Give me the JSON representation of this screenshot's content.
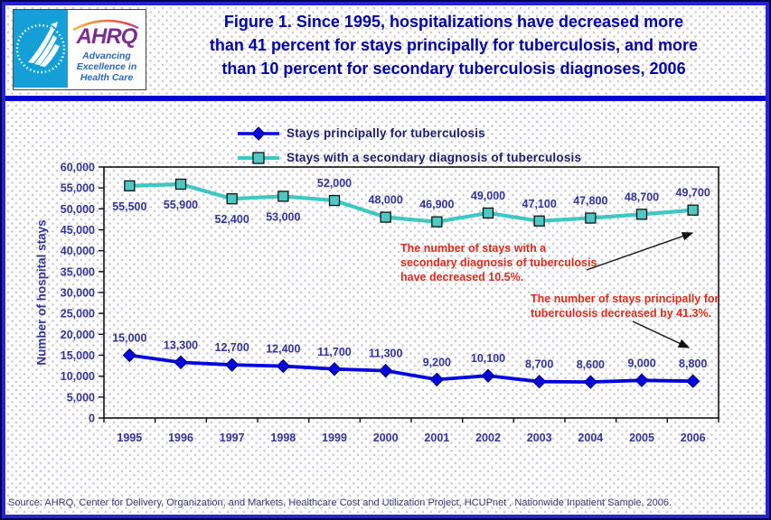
{
  "header": {
    "logo": {
      "brand": "AHRQ",
      "tagline_lines": [
        "Advancing",
        "Excellence in",
        "Health Care"
      ]
    },
    "title_lines": [
      "Figure 1. Since 1995, hospitalizations have decreased more",
      "than 41 percent for stays principally for tuberculosis, and more",
      "than 10 percent for secondary tuberculosis diagnoses, 2006"
    ]
  },
  "chart_data": {
    "type": "line",
    "categories": [
      "1995",
      "1996",
      "1997",
      "1998",
      "1999",
      "2000",
      "2001",
      "2002",
      "2003",
      "2004",
      "2005",
      "2006"
    ],
    "series": [
      {
        "name": "Stays principally for tuberculosis",
        "values": [
          15000,
          13300,
          12700,
          12400,
          11700,
          11300,
          9200,
          10100,
          8700,
          8600,
          9000,
          8800
        ],
        "color": "#0202E0",
        "marker": "diamond",
        "label_positions": [
          "above",
          "above",
          "above",
          "above",
          "above",
          "above",
          "above",
          "above",
          "above",
          "above",
          "above",
          "above"
        ]
      },
      {
        "name": "Stays with a secondary diagnosis of tuberculosis",
        "values": [
          55500,
          55900,
          52400,
          53000,
          52000,
          48000,
          46900,
          49000,
          47100,
          47800,
          48700,
          49700
        ],
        "color": "#3EC8C4",
        "marker": "square",
        "label_positions": [
          "below",
          "below",
          "below",
          "below",
          "above",
          "above",
          "above",
          "above",
          "above",
          "above",
          "above",
          "above"
        ]
      }
    ],
    "ylabel": "Number of hospital stays",
    "xlabel": "",
    "ylim": [
      0,
      60000
    ],
    "ytick_step": 5000,
    "grid": false,
    "legend_position": "top"
  },
  "annotations": [
    {
      "lines": [
        "The number of stays with a",
        "secondary diagnosis of tuberculosis",
        "have decreased 10.5%."
      ],
      "color": "#E02A1A"
    },
    {
      "lines": [
        "The number of stays principally for",
        "tuberculosis decreased by 41.3%."
      ],
      "color": "#E02A1A"
    }
  ],
  "source_note": "Source: AHRQ, Center for Delivery, Organization, and Markets, Healthcare Cost and Utilization Project, HCUPnet , Nationwide Inpatient Sample, 2006.",
  "colors": {
    "title": "#0000A6",
    "axis_text": "#333399",
    "legend_text": "#1D1D6B",
    "divider": "#0202D0",
    "annotation": "#E02A1A"
  }
}
